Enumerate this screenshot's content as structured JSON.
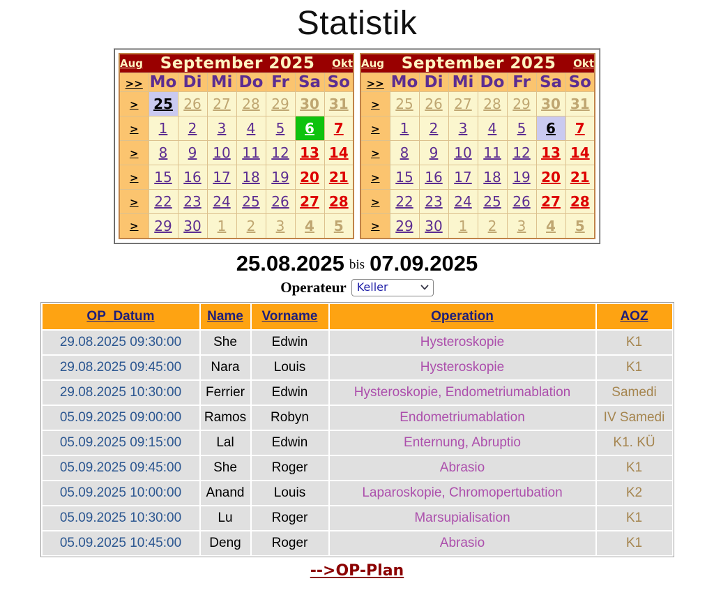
{
  "title": "Statistik",
  "colors": {
    "header_red": "#990000",
    "header_cream": "#FFF3C2",
    "cal_orange": "#FBC46F",
    "cal_cell_bg": "#FBF6CE",
    "cal_border": "#C08348",
    "grid_line": "#DCC18E",
    "purple": "#5C2D91",
    "red": "#DD0000",
    "tan": "#BFA671",
    "selected_bg": "#CACAF0",
    "today_bg": "#0EC20E",
    "table_header_orange": "#FEA312",
    "table_header_link": "#1F1F7A",
    "row_gray": "#E0E0E0",
    "date_blue": "#2C5791",
    "operation_purple": "#AC4FAC",
    "aoz_tan": "#A5854F",
    "link_darkred": "#8B0000"
  },
  "calendars": [
    {
      "prev": "Aug",
      "title": "September 2025",
      "next": "Okt",
      "nav_all": ">>",
      "nav_week": ">",
      "weekdays": [
        "Mo",
        "Di",
        "Mi",
        "Do",
        "Fr",
        "Sa",
        "So"
      ],
      "weeks": [
        [
          [
            "25",
            "sel"
          ],
          [
            "26",
            "oth"
          ],
          [
            "27",
            "oth"
          ],
          [
            "28",
            "oth"
          ],
          [
            "29",
            "oth"
          ],
          [
            "30",
            "othb"
          ],
          [
            "31",
            "othb"
          ]
        ],
        [
          [
            "1",
            "cur"
          ],
          [
            "2",
            "cur"
          ],
          [
            "3",
            "cur"
          ],
          [
            "4",
            "cur"
          ],
          [
            "5",
            "cur"
          ],
          [
            "6",
            "today"
          ],
          [
            "7",
            "wkend"
          ]
        ],
        [
          [
            "8",
            "cur"
          ],
          [
            "9",
            "cur"
          ],
          [
            "10",
            "cur"
          ],
          [
            "11",
            "cur"
          ],
          [
            "12",
            "cur"
          ],
          [
            "13",
            "wkend"
          ],
          [
            "14",
            "wkend"
          ]
        ],
        [
          [
            "15",
            "cur"
          ],
          [
            "16",
            "cur"
          ],
          [
            "17",
            "cur"
          ],
          [
            "18",
            "cur"
          ],
          [
            "19",
            "cur"
          ],
          [
            "20",
            "wkend"
          ],
          [
            "21",
            "wkend"
          ]
        ],
        [
          [
            "22",
            "cur"
          ],
          [
            "23",
            "cur"
          ],
          [
            "24",
            "cur"
          ],
          [
            "25",
            "cur"
          ],
          [
            "26",
            "cur"
          ],
          [
            "27",
            "wkend"
          ],
          [
            "28",
            "wkend"
          ]
        ],
        [
          [
            "29",
            "cur"
          ],
          [
            "30",
            "cur"
          ],
          [
            "1",
            "oth"
          ],
          [
            "2",
            "oth"
          ],
          [
            "3",
            "oth"
          ],
          [
            "4",
            "othb"
          ],
          [
            "5",
            "othb"
          ]
        ]
      ]
    },
    {
      "prev": "Aug",
      "title": "September 2025",
      "next": "Okt",
      "nav_all": ">>",
      "nav_week": ">",
      "weekdays": [
        "Mo",
        "Di",
        "Mi",
        "Do",
        "Fr",
        "Sa",
        "So"
      ],
      "weeks": [
        [
          [
            "25",
            "oth"
          ],
          [
            "26",
            "oth"
          ],
          [
            "27",
            "oth"
          ],
          [
            "28",
            "oth"
          ],
          [
            "29",
            "oth"
          ],
          [
            "30",
            "othb"
          ],
          [
            "31",
            "othb"
          ]
        ],
        [
          [
            "1",
            "cur"
          ],
          [
            "2",
            "cur"
          ],
          [
            "3",
            "cur"
          ],
          [
            "4",
            "cur"
          ],
          [
            "5",
            "cur"
          ],
          [
            "6",
            "sel"
          ],
          [
            "7",
            "wkend"
          ]
        ],
        [
          [
            "8",
            "cur"
          ],
          [
            "9",
            "cur"
          ],
          [
            "10",
            "cur"
          ],
          [
            "11",
            "cur"
          ],
          [
            "12",
            "cur"
          ],
          [
            "13",
            "wkend"
          ],
          [
            "14",
            "wkend"
          ]
        ],
        [
          [
            "15",
            "cur"
          ],
          [
            "16",
            "cur"
          ],
          [
            "17",
            "cur"
          ],
          [
            "18",
            "cur"
          ],
          [
            "19",
            "cur"
          ],
          [
            "20",
            "wkend"
          ],
          [
            "21",
            "wkend"
          ]
        ],
        [
          [
            "22",
            "cur"
          ],
          [
            "23",
            "cur"
          ],
          [
            "24",
            "cur"
          ],
          [
            "25",
            "cur"
          ],
          [
            "26",
            "cur"
          ],
          [
            "27",
            "wkend"
          ],
          [
            "28",
            "wkend"
          ]
        ],
        [
          [
            "29",
            "cur"
          ],
          [
            "30",
            "cur"
          ],
          [
            "1",
            "oth"
          ],
          [
            "2",
            "oth"
          ],
          [
            "3",
            "oth"
          ],
          [
            "4",
            "othb"
          ],
          [
            "5",
            "othb"
          ]
        ]
      ]
    }
  ],
  "date_range": {
    "start": "25.08.2025",
    "separator": "bis",
    "end": "07.09.2025"
  },
  "operator": {
    "label": "Operateur",
    "selected": "Keller"
  },
  "table": {
    "headers": [
      "OP_Datum",
      "Name",
      "Vorname",
      "Operation",
      "AOZ"
    ],
    "rows": [
      {
        "datum": "29.08.2025 09:30:00",
        "name": "She",
        "vorname": "Edwin",
        "operation": "Hysteroskopie",
        "aoz": "K1"
      },
      {
        "datum": "29.08.2025 09:45:00",
        "name": "Nara",
        "vorname": "Louis",
        "operation": "Hysteroskopie",
        "aoz": "K1"
      },
      {
        "datum": "29.08.2025 10:30:00",
        "name": "Ferrier",
        "vorname": "Edwin",
        "operation": "Hysteroskopie, Endometriumablation",
        "aoz": "Samedi"
      },
      {
        "datum": "05.09.2025 09:00:00",
        "name": "Ramos",
        "vorname": "Robyn",
        "operation": "Endometriumablation",
        "aoz": "IV Samedi"
      },
      {
        "datum": "05.09.2025 09:15:00",
        "name": "Lal",
        "vorname": "Edwin",
        "operation": "Enternung, Abruptio",
        "aoz": "K1. KÜ"
      },
      {
        "datum": "05.09.2025 09:45:00",
        "name": "She",
        "vorname": "Roger",
        "operation": "Abrasio",
        "aoz": "K1"
      },
      {
        "datum": "05.09.2025 10:00:00",
        "name": "Anand",
        "vorname": "Louis",
        "operation": "Laparoskopie, Chromopertubation",
        "aoz": "K2"
      },
      {
        "datum": "05.09.2025 10:30:00",
        "name": "Lu",
        "vorname": "Roger",
        "operation": "Marsupialisation",
        "aoz": "K1"
      },
      {
        "datum": "05.09.2025 10:45:00",
        "name": "Deng",
        "vorname": "Roger",
        "operation": "Abrasio",
        "aoz": "K1"
      }
    ]
  },
  "footer": {
    "op_plan": "-->OP-Plan"
  }
}
